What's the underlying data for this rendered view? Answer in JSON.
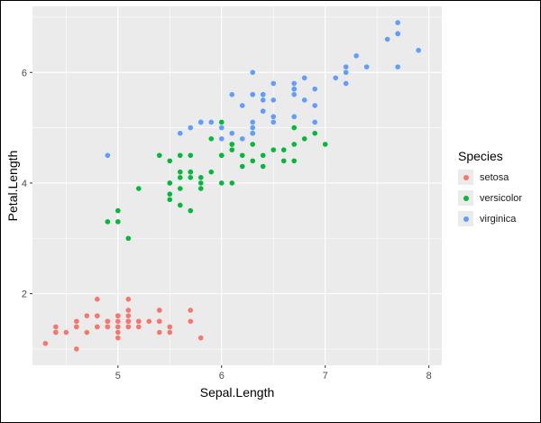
{
  "chart_data": {
    "type": "scatter",
    "title": "",
    "xlabel": "Sepal.Length",
    "ylabel": "Petal.Length",
    "xlim": [
      4.175,
      8.125
    ],
    "ylim": [
      0.705,
      7.195
    ],
    "x_ticks": [
      5,
      6,
      7,
      8
    ],
    "y_ticks": [
      2,
      4,
      6
    ],
    "grid": true,
    "legend_position": "right",
    "legend_title": "Species",
    "series": [
      {
        "name": "setosa",
        "color": "#F8766D",
        "points": [
          [
            5.1,
            1.4
          ],
          [
            4.9,
            1.4
          ],
          [
            4.7,
            1.3
          ],
          [
            4.6,
            1.5
          ],
          [
            5.0,
            1.4
          ],
          [
            5.4,
            1.7
          ],
          [
            4.6,
            1.4
          ],
          [
            5.0,
            1.5
          ],
          [
            4.4,
            1.4
          ],
          [
            4.9,
            1.5
          ],
          [
            5.4,
            1.5
          ],
          [
            4.8,
            1.6
          ],
          [
            4.8,
            1.4
          ],
          [
            4.3,
            1.1
          ],
          [
            5.8,
            1.2
          ],
          [
            5.7,
            1.5
          ],
          [
            5.4,
            1.3
          ],
          [
            5.1,
            1.4
          ],
          [
            5.7,
            1.7
          ],
          [
            5.1,
            1.5
          ],
          [
            5.4,
            1.7
          ],
          [
            5.1,
            1.5
          ],
          [
            4.6,
            1.0
          ],
          [
            5.1,
            1.7
          ],
          [
            4.8,
            1.9
          ],
          [
            5.0,
            1.6
          ],
          [
            5.0,
            1.6
          ],
          [
            5.2,
            1.5
          ],
          [
            5.2,
            1.4
          ],
          [
            4.7,
            1.6
          ],
          [
            4.8,
            1.6
          ],
          [
            5.4,
            1.5
          ],
          [
            5.2,
            1.5
          ],
          [
            5.5,
            1.4
          ],
          [
            4.9,
            1.5
          ],
          [
            5.0,
            1.2
          ],
          [
            5.5,
            1.3
          ],
          [
            4.9,
            1.4
          ],
          [
            4.4,
            1.3
          ],
          [
            5.1,
            1.5
          ],
          [
            5.0,
            1.3
          ],
          [
            4.5,
            1.3
          ],
          [
            4.4,
            1.3
          ],
          [
            5.0,
            1.6
          ],
          [
            5.1,
            1.9
          ],
          [
            4.8,
            1.4
          ],
          [
            5.1,
            1.6
          ],
          [
            4.6,
            1.4
          ],
          [
            5.3,
            1.5
          ],
          [
            5.0,
            1.4
          ]
        ]
      },
      {
        "name": "versicolor",
        "color": "#00BA38",
        "points": [
          [
            7.0,
            4.7
          ],
          [
            6.4,
            4.5
          ],
          [
            6.9,
            4.9
          ],
          [
            5.5,
            4.0
          ],
          [
            6.5,
            4.6
          ],
          [
            5.7,
            4.5
          ],
          [
            6.3,
            4.7
          ],
          [
            4.9,
            3.3
          ],
          [
            6.6,
            4.6
          ],
          [
            5.2,
            3.9
          ],
          [
            5.0,
            3.5
          ],
          [
            5.9,
            4.2
          ],
          [
            6.0,
            4.0
          ],
          [
            6.1,
            4.7
          ],
          [
            5.6,
            3.6
          ],
          [
            6.7,
            4.4
          ],
          [
            5.6,
            4.5
          ],
          [
            5.8,
            4.1
          ],
          [
            6.2,
            4.5
          ],
          [
            5.6,
            3.9
          ],
          [
            5.9,
            4.8
          ],
          [
            6.1,
            4.0
          ],
          [
            6.3,
            4.9
          ],
          [
            6.1,
            4.7
          ],
          [
            6.4,
            4.3
          ],
          [
            6.6,
            4.4
          ],
          [
            6.8,
            4.8
          ],
          [
            6.7,
            5.0
          ],
          [
            6.0,
            4.5
          ],
          [
            5.7,
            3.5
          ],
          [
            5.5,
            3.8
          ],
          [
            5.5,
            3.7
          ],
          [
            5.8,
            3.9
          ],
          [
            6.0,
            5.1
          ],
          [
            5.4,
            4.5
          ],
          [
            6.0,
            4.5
          ],
          [
            6.7,
            4.7
          ],
          [
            6.3,
            4.4
          ],
          [
            5.6,
            4.1
          ],
          [
            5.5,
            4.0
          ],
          [
            5.5,
            4.4
          ],
          [
            6.1,
            4.6
          ],
          [
            5.8,
            4.0
          ],
          [
            5.0,
            3.3
          ],
          [
            5.6,
            4.2
          ],
          [
            5.7,
            4.2
          ],
          [
            5.7,
            4.2
          ],
          [
            6.2,
            4.3
          ],
          [
            5.1,
            3.0
          ],
          [
            5.7,
            4.1
          ]
        ]
      },
      {
        "name": "virginica",
        "color": "#619CFF",
        "points": [
          [
            6.3,
            6.0
          ],
          [
            5.8,
            5.1
          ],
          [
            7.1,
            5.9
          ],
          [
            6.3,
            5.6
          ],
          [
            6.5,
            5.8
          ],
          [
            7.6,
            6.6
          ],
          [
            4.9,
            4.5
          ],
          [
            7.3,
            6.3
          ],
          [
            6.7,
            5.8
          ],
          [
            7.2,
            6.1
          ],
          [
            6.5,
            5.1
          ],
          [
            6.4,
            5.3
          ],
          [
            6.8,
            5.5
          ],
          [
            5.7,
            5.0
          ],
          [
            5.8,
            5.1
          ],
          [
            6.4,
            5.3
          ],
          [
            6.5,
            5.5
          ],
          [
            7.7,
            6.7
          ],
          [
            7.7,
            6.9
          ],
          [
            6.0,
            5.0
          ],
          [
            6.9,
            5.7
          ],
          [
            5.6,
            4.9
          ],
          [
            7.7,
            6.7
          ],
          [
            6.3,
            4.9
          ],
          [
            6.7,
            5.7
          ],
          [
            7.2,
            6.0
          ],
          [
            6.2,
            4.8
          ],
          [
            6.1,
            4.9
          ],
          [
            6.4,
            5.6
          ],
          [
            7.2,
            5.8
          ],
          [
            7.4,
            6.1
          ],
          [
            7.9,
            6.4
          ],
          [
            6.4,
            5.6
          ],
          [
            6.3,
            5.1
          ],
          [
            6.1,
            5.6
          ],
          [
            7.7,
            6.1
          ],
          [
            6.3,
            5.6
          ],
          [
            6.4,
            5.5
          ],
          [
            6.0,
            4.8
          ],
          [
            6.9,
            5.4
          ],
          [
            6.7,
            5.6
          ],
          [
            6.9,
            5.1
          ],
          [
            5.8,
            5.1
          ],
          [
            6.8,
            5.9
          ],
          [
            6.7,
            5.7
          ],
          [
            6.7,
            5.2
          ],
          [
            6.3,
            5.0
          ],
          [
            6.5,
            5.2
          ],
          [
            6.2,
            5.4
          ],
          [
            5.9,
            5.1
          ]
        ]
      }
    ]
  }
}
